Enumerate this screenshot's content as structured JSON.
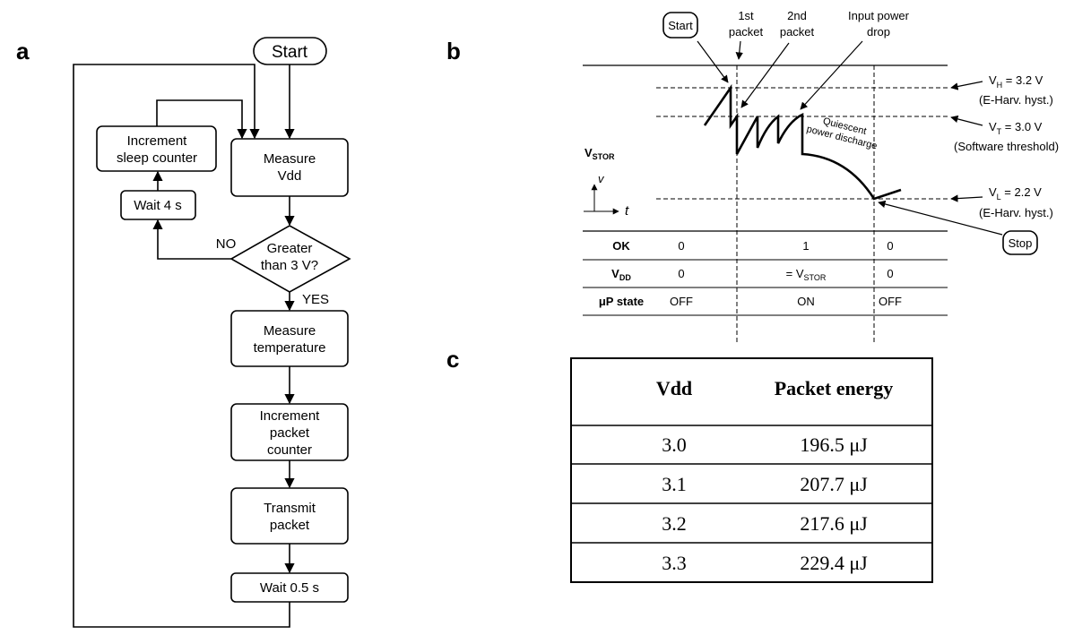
{
  "flowchart": {
    "label": "a",
    "start": "Start",
    "measure_vdd": [
      "Measure",
      "Vdd"
    ],
    "decision": [
      "Greater",
      "than 3 V?"
    ],
    "no": "NO",
    "yes": "YES",
    "wait_4s": "Wait 4 s",
    "sleep_counter": [
      "Increment",
      "sleep counter"
    ],
    "measure_temp": [
      "Measure",
      "temperature"
    ],
    "packet_counter": [
      "Increment",
      "packet",
      "counter"
    ],
    "transmit": [
      "Transmit",
      "packet"
    ],
    "wait_05": "Wait 0.5 s"
  },
  "timing": {
    "label": "b",
    "start": "Start",
    "stop": "Stop",
    "first_packet": [
      "1st",
      "packet"
    ],
    "second_packet": [
      "2nd",
      "packet"
    ],
    "power_drop": [
      "Input power",
      "drop"
    ],
    "discharge": [
      "Quiescent",
      "power discharge"
    ],
    "vh": {
      "symbol": "V",
      "sub": "H",
      "value": " = 3.2 V",
      "note": "(E-Harv. hyst.)"
    },
    "vt": {
      "symbol": "V",
      "sub": "T",
      "value": " = 3.0 V",
      "note": "(Software threshold)"
    },
    "vl": {
      "symbol": "V",
      "sub": "L",
      "value": " = 2.2 V",
      "note": "(E-Harv. hyst.)"
    },
    "vstor": {
      "symbol": "V",
      "sub": "STOR"
    },
    "axis_v": "v",
    "axis_t": "t",
    "ok": {
      "label": "OK",
      "values": [
        "0",
        "1",
        "0"
      ]
    },
    "vdd": {
      "label": {
        "symbol": "V",
        "sub": "DD"
      },
      "values": [
        "0",
        {
          "prefix": "= V",
          "sub": "STOR"
        },
        "0"
      ]
    },
    "up_state": {
      "label": "μP state",
      "values": [
        "OFF",
        "ON",
        "OFF"
      ]
    }
  },
  "table": {
    "label": "c",
    "header": [
      "Vdd",
      "Packet energy"
    ],
    "rows": [
      [
        "3.0",
        "196.5 μJ"
      ],
      [
        "3.1",
        "207.7 μJ"
      ],
      [
        "3.2",
        "217.6 μJ"
      ],
      [
        "3.3",
        "229.4 μJ"
      ]
    ]
  }
}
